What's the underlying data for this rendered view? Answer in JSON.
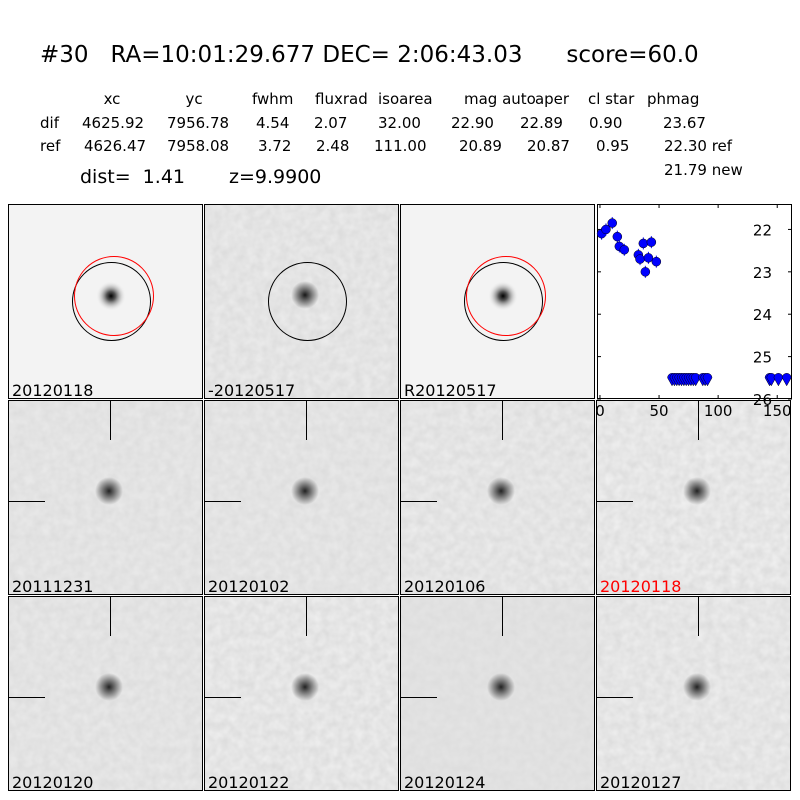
{
  "title": {
    "id": "#30",
    "ra": "RA=10:01:29.677",
    "dec": "DEC= 2:06:43.03",
    "score": "score=60.0"
  },
  "table": {
    "headers": [
      "xc",
      "yc",
      "fwhm",
      "fluxrad",
      "isoarea",
      "mag auto",
      "aper",
      "cl star",
      "phmag"
    ],
    "rows": [
      {
        "label": "dif",
        "values": [
          "4625.92",
          "7956.78",
          "4.54",
          "2.07",
          "32.00",
          "22.90",
          "22.89",
          "0.90",
          "23.67"
        ]
      },
      {
        "label": "ref",
        "values": [
          "4626.47",
          "7958.08",
          "3.72",
          "2.48",
          "111.00",
          "20.89",
          "20.87",
          "0.95",
          "22.30 ref"
        ]
      }
    ],
    "extra": "21.79 new",
    "dist": "dist=  1.41",
    "z": "z=9.9900"
  },
  "top_panels": [
    {
      "label": "20120118",
      "circles": [
        "black",
        "red"
      ],
      "style": "sci"
    },
    {
      "label": "-20120517",
      "circles": [
        "black"
      ],
      "style": "diff"
    },
    {
      "label": "R20120517",
      "circles": [
        "black",
        "red"
      ],
      "style": "sci"
    }
  ],
  "stamps": [
    {
      "label": "20111231",
      "color": "#000000"
    },
    {
      "label": "20120102",
      "color": "#000000"
    },
    {
      "label": "20120106",
      "color": "#000000"
    },
    {
      "label": "20120118",
      "color": "#ff0000"
    },
    {
      "label": "20120120",
      "color": "#000000"
    },
    {
      "label": "20120122",
      "color": "#000000"
    },
    {
      "label": "20120124",
      "color": "#000000"
    },
    {
      "label": "20120127",
      "color": "#000000"
    }
  ],
  "chart_data": {
    "type": "scatter",
    "xlim": [
      -2.5,
      162.5
    ],
    "ylim": [
      26,
      21.4
    ],
    "y_inverted": true,
    "xticks": [
      "0",
      "50",
      "100",
      "150"
    ],
    "yticks": [
      "22",
      "23",
      "24",
      "25",
      "26"
    ],
    "color": "#0000ff",
    "points": [
      {
        "x": 1.4,
        "y": 22.1
      },
      {
        "x": 5.1,
        "y": 22.0
      },
      {
        "x": 10.4,
        "y": 21.85
      },
      {
        "x": 14.7,
        "y": 22.17
      },
      {
        "x": 16.4,
        "y": 22.4
      },
      {
        "x": 20.6,
        "y": 22.48
      },
      {
        "x": 32.5,
        "y": 22.6
      },
      {
        "x": 33.9,
        "y": 22.7
      },
      {
        "x": 36.7,
        "y": 22.33
      },
      {
        "x": 38.4,
        "y": 23.0
      },
      {
        "x": 41,
        "y": 22.67
      },
      {
        "x": 43.5,
        "y": 22.3
      },
      {
        "x": 47.7,
        "y": 22.76
      }
    ],
    "upper_limits": {
      "y": 25.5,
      "x": [
        61,
        63,
        65,
        67,
        69,
        71,
        73,
        75,
        77,
        79,
        81,
        87,
        89,
        91,
        143.5,
        145,
        151,
        158
      ]
    }
  }
}
